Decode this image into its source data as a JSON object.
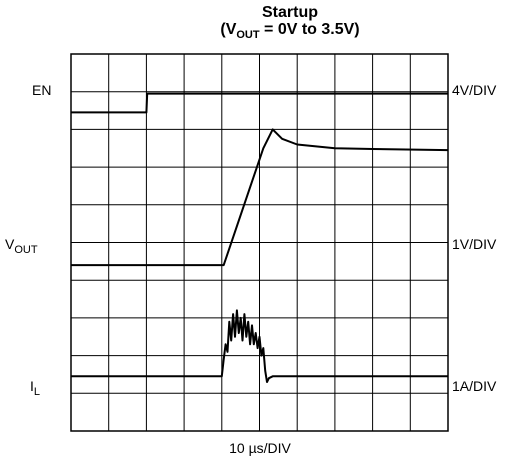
{
  "chart_data": {
    "type": "line",
    "title_line1": "Startup",
    "title_line2": {
      "prefix": "(V",
      "subscript": "OUT",
      "suffix": " = 0V to 3.5V)"
    },
    "xlabel": "10 µs/DIV",
    "x_divisions": 10,
    "y_divisions": 10,
    "grid": true,
    "channels": [
      {
        "left_label": "EN",
        "right_label": "4V/DIV",
        "points": [
          [
            0,
            8.45
          ],
          [
            2.0,
            8.45
          ],
          [
            2.02,
            8.95
          ],
          [
            10,
            8.95
          ]
        ]
      },
      {
        "left_label": {
          "main": "V",
          "subscript": "OUT"
        },
        "right_label": "1V/DIV",
        "points": [
          [
            0,
            4.4
          ],
          [
            4.05,
            4.4
          ],
          [
            5.1,
            7.5
          ],
          [
            5.35,
            8.0
          ],
          [
            5.6,
            7.75
          ],
          [
            6.0,
            7.6
          ],
          [
            7.0,
            7.5
          ],
          [
            8.0,
            7.48
          ],
          [
            10,
            7.45
          ]
        ]
      },
      {
        "left_label": {
          "main": "I",
          "subscript": "L"
        },
        "right_label": "1A/DIV",
        "points": [
          [
            0,
            1.45
          ],
          [
            4.0,
            1.45
          ],
          [
            4.05,
            1.9
          ],
          [
            4.1,
            2.3
          ],
          [
            4.15,
            2.1
          ],
          [
            4.2,
            2.9
          ],
          [
            4.25,
            2.4
          ],
          [
            4.3,
            3.1
          ],
          [
            4.35,
            2.5
          ],
          [
            4.4,
            3.2
          ],
          [
            4.45,
            2.6
          ],
          [
            4.5,
            3.0
          ],
          [
            4.55,
            2.4
          ],
          [
            4.6,
            3.1
          ],
          [
            4.65,
            2.5
          ],
          [
            4.7,
            2.9
          ],
          [
            4.75,
            2.3
          ],
          [
            4.8,
            2.8
          ],
          [
            4.85,
            2.3
          ],
          [
            4.9,
            2.6
          ],
          [
            4.95,
            2.2
          ],
          [
            5.0,
            2.5
          ],
          [
            5.05,
            2.0
          ],
          [
            5.1,
            2.2
          ],
          [
            5.15,
            1.6
          ],
          [
            5.2,
            1.3
          ],
          [
            5.25,
            1.4
          ],
          [
            5.35,
            1.45
          ],
          [
            10,
            1.45
          ]
        ]
      }
    ]
  }
}
